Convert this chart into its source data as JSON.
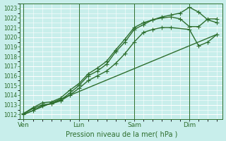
{
  "xlabel": "Pression niveau de la mer( hPa )",
  "bg_color": "#c8eeeb",
  "grid_color": "#ffffff",
  "line_color": "#2d6e2d",
  "ylim": [
    1011.5,
    1023.5
  ],
  "yticks": [
    1012,
    1013,
    1014,
    1015,
    1016,
    1017,
    1018,
    1019,
    1020,
    1021,
    1022,
    1023
  ],
  "xtick_labels": [
    "Ven",
    "Lun",
    "Sam",
    "Dim"
  ],
  "xtick_positions": [
    0,
    30,
    60,
    90
  ],
  "xlim": [
    -2,
    108
  ],
  "lines": [
    {
      "x": [
        0,
        5,
        10,
        15,
        20,
        25,
        30,
        35,
        40,
        45,
        50,
        55,
        60,
        65,
        70,
        75,
        80,
        85,
        90,
        95,
        100,
        105
      ],
      "y": [
        1012.1,
        1012.7,
        1013.2,
        1013.3,
        1013.7,
        1014.5,
        1015.2,
        1016.2,
        1016.8,
        1017.5,
        1018.7,
        1019.8,
        1021.0,
        1021.5,
        1021.8,
        1022.1,
        1022.3,
        1022.5,
        1023.1,
        1022.6,
        1021.8,
        1021.5
      ],
      "marker": "+",
      "ms": 4,
      "lw": 1.0
    },
    {
      "x": [
        0,
        5,
        10,
        15,
        20,
        25,
        30,
        35,
        40,
        45,
        50,
        55,
        60,
        65,
        70,
        75,
        80,
        85,
        90,
        95,
        100,
        105
      ],
      "y": [
        1012.1,
        1012.6,
        1013.0,
        1013.1,
        1013.5,
        1014.2,
        1015.0,
        1016.0,
        1016.5,
        1017.2,
        1018.5,
        1019.5,
        1020.8,
        1021.3,
        1021.8,
        1022.0,
        1022.1,
        1021.9,
        1021.1,
        1021.1,
        1021.9,
        1021.9
      ],
      "marker": "+",
      "ms": 4,
      "lw": 1.0
    },
    {
      "x": [
        0,
        5,
        10,
        15,
        20,
        25,
        30,
        35,
        40,
        45,
        50,
        55,
        60,
        65,
        70,
        75,
        80,
        90,
        95,
        100,
        105
      ],
      "y": [
        1012.0,
        1012.4,
        1012.9,
        1013.1,
        1013.4,
        1014.0,
        1014.7,
        1015.5,
        1016.0,
        1016.5,
        1017.3,
        1018.3,
        1019.5,
        1020.5,
        1020.8,
        1021.0,
        1021.0,
        1020.8,
        1019.1,
        1019.5,
        1020.3
      ],
      "marker": "+",
      "ms": 4,
      "lw": 1.0
    },
    {
      "x": [
        0,
        105
      ],
      "y": [
        1012.0,
        1020.3
      ],
      "marker": null,
      "ms": 0,
      "lw": 1.0
    }
  ]
}
